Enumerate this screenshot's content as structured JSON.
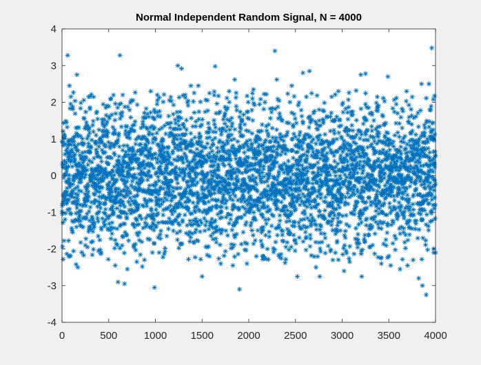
{
  "window": {
    "background": "#f0f0f0"
  },
  "chart_data": {
    "type": "scatter",
    "title": "Normal Independent Random Signal, N = 4000",
    "xlabel": "",
    "ylabel": "",
    "xlim": [
      0,
      4000
    ],
    "ylim": [
      -4,
      4
    ],
    "xticks": [
      0,
      500,
      1000,
      1500,
      2000,
      2500,
      3000,
      3500,
      4000
    ],
    "yticks": [
      -4,
      -3,
      -2,
      -1,
      0,
      1,
      2,
      3,
      4
    ],
    "xtick_labels": [
      "0",
      "500",
      "1000",
      "1500",
      "2000",
      "2500",
      "3000",
      "3500",
      "4000"
    ],
    "ytick_labels": [
      "-4",
      "-3",
      "-2",
      "-1",
      "0",
      "1",
      "2",
      "3",
      "4"
    ],
    "marker": "asterisk",
    "marker_color": "#0072bd",
    "grid": false,
    "legend": "none",
    "series": [
      {
        "points": [
          [
            12,
            -2.28
          ],
          [
            25,
            1.12
          ],
          [
            60,
            3.28
          ],
          [
            80,
            2.45
          ],
          [
            95,
            2.15
          ],
          [
            160,
            2.75
          ],
          [
            150,
            -2.42
          ],
          [
            170,
            -2.5
          ],
          [
            250,
            -1.9
          ],
          [
            300,
            1.82
          ],
          [
            390,
            -2.05
          ],
          [
            420,
            -2.1
          ],
          [
            470,
            1.85
          ],
          [
            520,
            2.1
          ],
          [
            570,
            -2.45
          ],
          [
            600,
            -2.9
          ],
          [
            620,
            3.28
          ],
          [
            650,
            2.2
          ],
          [
            670,
            -2.95
          ],
          [
            700,
            -2.55
          ],
          [
            760,
            2.05
          ],
          [
            800,
            -2.35
          ],
          [
            860,
            -2.48
          ],
          [
            950,
            2.3
          ],
          [
            990,
            -3.05
          ],
          [
            1020,
            2.2
          ],
          [
            1040,
            -2.1
          ],
          [
            1150,
            2.05
          ],
          [
            1240,
            3.0
          ],
          [
            1280,
            2.92
          ],
          [
            1320,
            2.2
          ],
          [
            1380,
            2.45
          ],
          [
            1460,
            2.45
          ],
          [
            1500,
            -2.75
          ],
          [
            1580,
            -2.2
          ],
          [
            1640,
            2.98
          ],
          [
            1700,
            -2.4
          ],
          [
            1790,
            2.3
          ],
          [
            1830,
            -2.45
          ],
          [
            1850,
            2.62
          ],
          [
            1900,
            -3.1
          ],
          [
            1980,
            -2.4
          ],
          [
            2050,
            2.35
          ],
          [
            2150,
            -2.2
          ],
          [
            2200,
            -2.0
          ],
          [
            2280,
            3.4
          ],
          [
            2300,
            2.62
          ],
          [
            2390,
            -2.38
          ],
          [
            2460,
            2.45
          ],
          [
            2520,
            -2.75
          ],
          [
            2580,
            2.8
          ],
          [
            2650,
            2.85
          ],
          [
            2720,
            -2.5
          ],
          [
            2760,
            -2.75
          ],
          [
            2900,
            -2.3
          ],
          [
            2960,
            2.3
          ],
          [
            3020,
            -2.6
          ],
          [
            3080,
            -2.35
          ],
          [
            3150,
            2.32
          ],
          [
            3200,
            2.75
          ],
          [
            3210,
            -2.75
          ],
          [
            3250,
            2.78
          ],
          [
            3420,
            -2.4
          ],
          [
            3490,
            2.7
          ],
          [
            3520,
            -2.45
          ],
          [
            3580,
            1.95
          ],
          [
            3620,
            -2.55
          ],
          [
            3690,
            2.3
          ],
          [
            3700,
            -2.45
          ],
          [
            3760,
            -2.3
          ],
          [
            3820,
            -2.8
          ],
          [
            3850,
            2.5
          ],
          [
            3860,
            -3.0
          ],
          [
            3900,
            -3.25
          ],
          [
            3930,
            2.5
          ],
          [
            3960,
            3.48
          ],
          [
            3980,
            -2.1
          ],
          [
            3990,
            -0.6
          ]
        ],
        "bulk": {
          "count": 3922,
          "x_range": [
            1,
            4000
          ],
          "distribution": "normal",
          "mean": 0,
          "std": 1
        }
      }
    ]
  }
}
